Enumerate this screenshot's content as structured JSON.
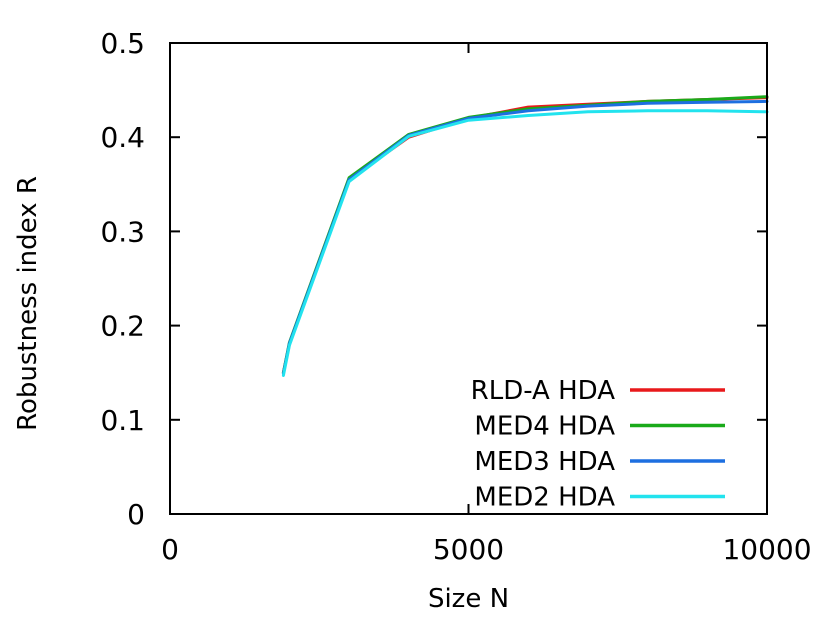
{
  "chart_data": {
    "type": "line",
    "title": "",
    "xlabel": "Size N",
    "ylabel": "Robustness index R",
    "xlim": [
      0,
      10000
    ],
    "ylim": [
      0,
      0.5
    ],
    "x_ticks": [
      0,
      5000,
      10000
    ],
    "y_ticks": [
      0,
      0.1,
      0.2,
      0.3,
      0.4,
      0.5
    ],
    "x_tick_labels": [
      "0",
      "5000",
      "10000"
    ],
    "y_tick_labels": [
      "0",
      "0.1",
      "0.2",
      "0.3",
      "0.4",
      "0.5"
    ],
    "grid": false,
    "legend_position": "bottom-right",
    "series": [
      {
        "name": "RLD-A HDA",
        "color": "#e8191b",
        "x": [
          1900,
          2000,
          3000,
          4000,
          5000,
          6000,
          7000,
          8000,
          9000,
          10000
        ],
        "y": [
          0.15,
          0.18,
          0.355,
          0.4,
          0.42,
          0.432,
          0.435,
          0.438,
          0.44,
          0.442
        ]
      },
      {
        "name": "MED4 HDA",
        "color": "#1aaa1a",
        "x": [
          1900,
          2000,
          3000,
          4000,
          5000,
          6000,
          7000,
          8000,
          9000,
          10000
        ],
        "y": [
          0.15,
          0.182,
          0.357,
          0.403,
          0.421,
          0.43,
          0.434,
          0.438,
          0.44,
          0.443
        ]
      },
      {
        "name": "MED3 HDA",
        "color": "#1d6fe0",
        "x": [
          1900,
          2000,
          3000,
          4000,
          5000,
          6000,
          7000,
          8000,
          9000,
          10000
        ],
        "y": [
          0.149,
          0.181,
          0.355,
          0.402,
          0.42,
          0.428,
          0.433,
          0.436,
          0.437,
          0.438
        ]
      },
      {
        "name": "MED2 HDA",
        "color": "#22e3ee",
        "x": [
          1900,
          2000,
          3000,
          4000,
          5000,
          6000,
          7000,
          8000,
          9000,
          10000
        ],
        "y": [
          0.147,
          0.179,
          0.353,
          0.401,
          0.418,
          0.423,
          0.427,
          0.428,
          0.428,
          0.427
        ]
      }
    ]
  }
}
